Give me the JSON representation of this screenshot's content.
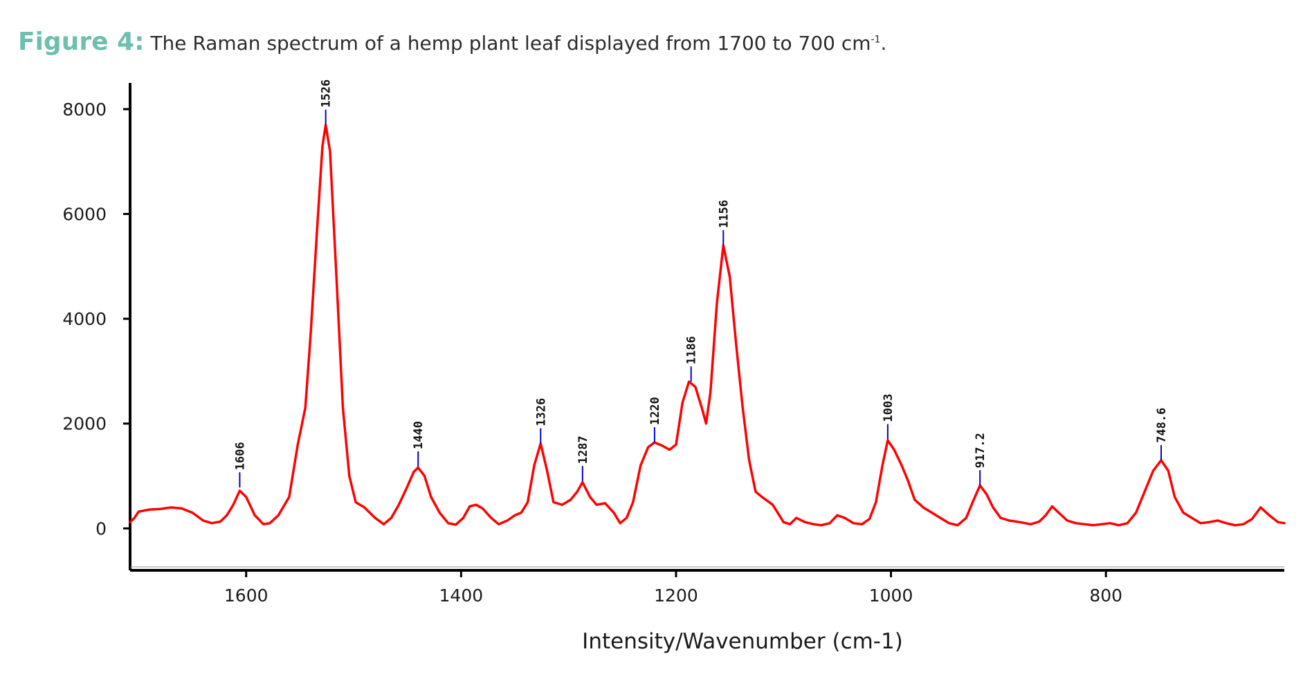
{
  "caption": {
    "figure_label": "Figure 4:",
    "text": "The Raman spectrum of a hemp plant leaf displayed from 1700 to 700 cm",
    "superscript": "-1",
    "suffix": "."
  },
  "colors": {
    "caption_label": "#6dbfae",
    "spectrum": "#ff0000",
    "peak_marker": "#0000cc",
    "axis": "#000000"
  },
  "chart_data": {
    "type": "line",
    "title": "",
    "xlabel": "Intensity/Wavenumber (cm-1)",
    "ylabel": "",
    "xlim": [
      1708,
      634
    ],
    "ylim": [
      -800,
      8500
    ],
    "x_reversed": true,
    "grid": false,
    "legend": "none",
    "x_ticks": [
      1600,
      1400,
      1200,
      1000,
      800
    ],
    "x_tick_labels": [
      "1600",
      "1400",
      "1200",
      "1000",
      "800"
    ],
    "y_ticks": [
      0,
      2000,
      4000,
      6000,
      8000
    ],
    "y_tick_labels": [
      "0",
      "2000",
      "4000",
      "6000",
      "8000"
    ],
    "peaks": [
      {
        "x": 1606,
        "y": 780,
        "label": "1606"
      },
      {
        "x": 1526,
        "y": 7700,
        "label": "1526"
      },
      {
        "x": 1440,
        "y": 1180,
        "label": "1440"
      },
      {
        "x": 1326,
        "y": 1620,
        "label": "1326"
      },
      {
        "x": 1287,
        "y": 900,
        "label": "1287"
      },
      {
        "x": 1220,
        "y": 1640,
        "label": "1220"
      },
      {
        "x": 1186,
        "y": 2800,
        "label": "1186"
      },
      {
        "x": 1156,
        "y": 5400,
        "label": "1156"
      },
      {
        "x": 1003,
        "y": 1700,
        "label": "1003"
      },
      {
        "x": 917.2,
        "y": 820,
        "label": "917.2"
      },
      {
        "x": 748.6,
        "y": 1300,
        "label": "748.6"
      }
    ],
    "series": [
      {
        "values": [
          [
            1708,
            120
          ],
          [
            1704,
            200
          ],
          [
            1700,
            320
          ],
          [
            1690,
            360
          ],
          [
            1680,
            370
          ],
          [
            1670,
            400
          ],
          [
            1660,
            380
          ],
          [
            1650,
            300
          ],
          [
            1640,
            150
          ],
          [
            1632,
            100
          ],
          [
            1624,
            130
          ],
          [
            1618,
            250
          ],
          [
            1612,
            450
          ],
          [
            1606,
            720
          ],
          [
            1600,
            600
          ],
          [
            1592,
            250
          ],
          [
            1584,
            80
          ],
          [
            1578,
            100
          ],
          [
            1570,
            250
          ],
          [
            1560,
            600
          ],
          [
            1552,
            1600
          ],
          [
            1545,
            2300
          ],
          [
            1540,
            3700
          ],
          [
            1534,
            5700
          ],
          [
            1529,
            7300
          ],
          [
            1526,
            7700
          ],
          [
            1522,
            7200
          ],
          [
            1516,
            4800
          ],
          [
            1510,
            2300
          ],
          [
            1504,
            1000
          ],
          [
            1498,
            500
          ],
          [
            1490,
            400
          ],
          [
            1480,
            200
          ],
          [
            1472,
            80
          ],
          [
            1465,
            200
          ],
          [
            1458,
            450
          ],
          [
            1450,
            800
          ],
          [
            1444,
            1080
          ],
          [
            1440,
            1160
          ],
          [
            1434,
            1000
          ],
          [
            1428,
            600
          ],
          [
            1420,
            300
          ],
          [
            1412,
            100
          ],
          [
            1405,
            70
          ],
          [
            1398,
            200
          ],
          [
            1392,
            420
          ],
          [
            1386,
            450
          ],
          [
            1380,
            380
          ],
          [
            1372,
            200
          ],
          [
            1365,
            80
          ],
          [
            1357,
            150
          ],
          [
            1350,
            250
          ],
          [
            1344,
            300
          ],
          [
            1338,
            500
          ],
          [
            1332,
            1200
          ],
          [
            1326,
            1620
          ],
          [
            1320,
            1100
          ],
          [
            1314,
            500
          ],
          [
            1306,
            450
          ],
          [
            1298,
            550
          ],
          [
            1292,
            700
          ],
          [
            1287,
            880
          ],
          [
            1280,
            600
          ],
          [
            1274,
            450
          ],
          [
            1266,
            480
          ],
          [
            1258,
            300
          ],
          [
            1252,
            100
          ],
          [
            1246,
            200
          ],
          [
            1240,
            500
          ],
          [
            1233,
            1200
          ],
          [
            1226,
            1550
          ],
          [
            1220,
            1640
          ],
          [
            1213,
            1580
          ],
          [
            1206,
            1500
          ],
          [
            1200,
            1600
          ],
          [
            1194,
            2400
          ],
          [
            1188,
            2800
          ],
          [
            1182,
            2700
          ],
          [
            1176,
            2300
          ],
          [
            1172,
            2000
          ],
          [
            1168,
            2600
          ],
          [
            1162,
            4300
          ],
          [
            1156,
            5400
          ],
          [
            1150,
            4800
          ],
          [
            1144,
            3500
          ],
          [
            1138,
            2300
          ],
          [
            1132,
            1300
          ],
          [
            1126,
            700
          ],
          [
            1120,
            600
          ],
          [
            1110,
            450
          ],
          [
            1100,
            120
          ],
          [
            1094,
            80
          ],
          [
            1088,
            200
          ],
          [
            1080,
            120
          ],
          [
            1072,
            80
          ],
          [
            1065,
            60
          ],
          [
            1057,
            100
          ],
          [
            1050,
            250
          ],
          [
            1043,
            200
          ],
          [
            1035,
            100
          ],
          [
            1027,
            80
          ],
          [
            1020,
            180
          ],
          [
            1014,
            500
          ],
          [
            1008,
            1200
          ],
          [
            1003,
            1680
          ],
          [
            997,
            1500
          ],
          [
            990,
            1200
          ],
          [
            984,
            900
          ],
          [
            978,
            550
          ],
          [
            970,
            400
          ],
          [
            962,
            300
          ],
          [
            954,
            200
          ],
          [
            946,
            100
          ],
          [
            938,
            60
          ],
          [
            930,
            200
          ],
          [
            924,
            500
          ],
          [
            917.2,
            820
          ],
          [
            911,
            650
          ],
          [
            905,
            400
          ],
          [
            898,
            200
          ],
          [
            890,
            150
          ],
          [
            880,
            120
          ],
          [
            870,
            80
          ],
          [
            862,
            130
          ],
          [
            856,
            250
          ],
          [
            850,
            420
          ],
          [
            844,
            300
          ],
          [
            836,
            150
          ],
          [
            828,
            100
          ],
          [
            820,
            80
          ],
          [
            812,
            60
          ],
          [
            804,
            80
          ],
          [
            796,
            100
          ],
          [
            788,
            60
          ],
          [
            780,
            100
          ],
          [
            772,
            300
          ],
          [
            764,
            700
          ],
          [
            756,
            1100
          ],
          [
            748.6,
            1300
          ],
          [
            742,
            1100
          ],
          [
            736,
            600
          ],
          [
            728,
            300
          ],
          [
            720,
            200
          ],
          [
            712,
            100
          ],
          [
            704,
            120
          ],
          [
            696,
            150
          ],
          [
            688,
            100
          ],
          [
            680,
            60
          ],
          [
            672,
            80
          ],
          [
            664,
            180
          ],
          [
            656,
            400
          ],
          [
            648,
            250
          ],
          [
            640,
            120
          ],
          [
            634,
            100
          ]
        ]
      }
    ]
  }
}
